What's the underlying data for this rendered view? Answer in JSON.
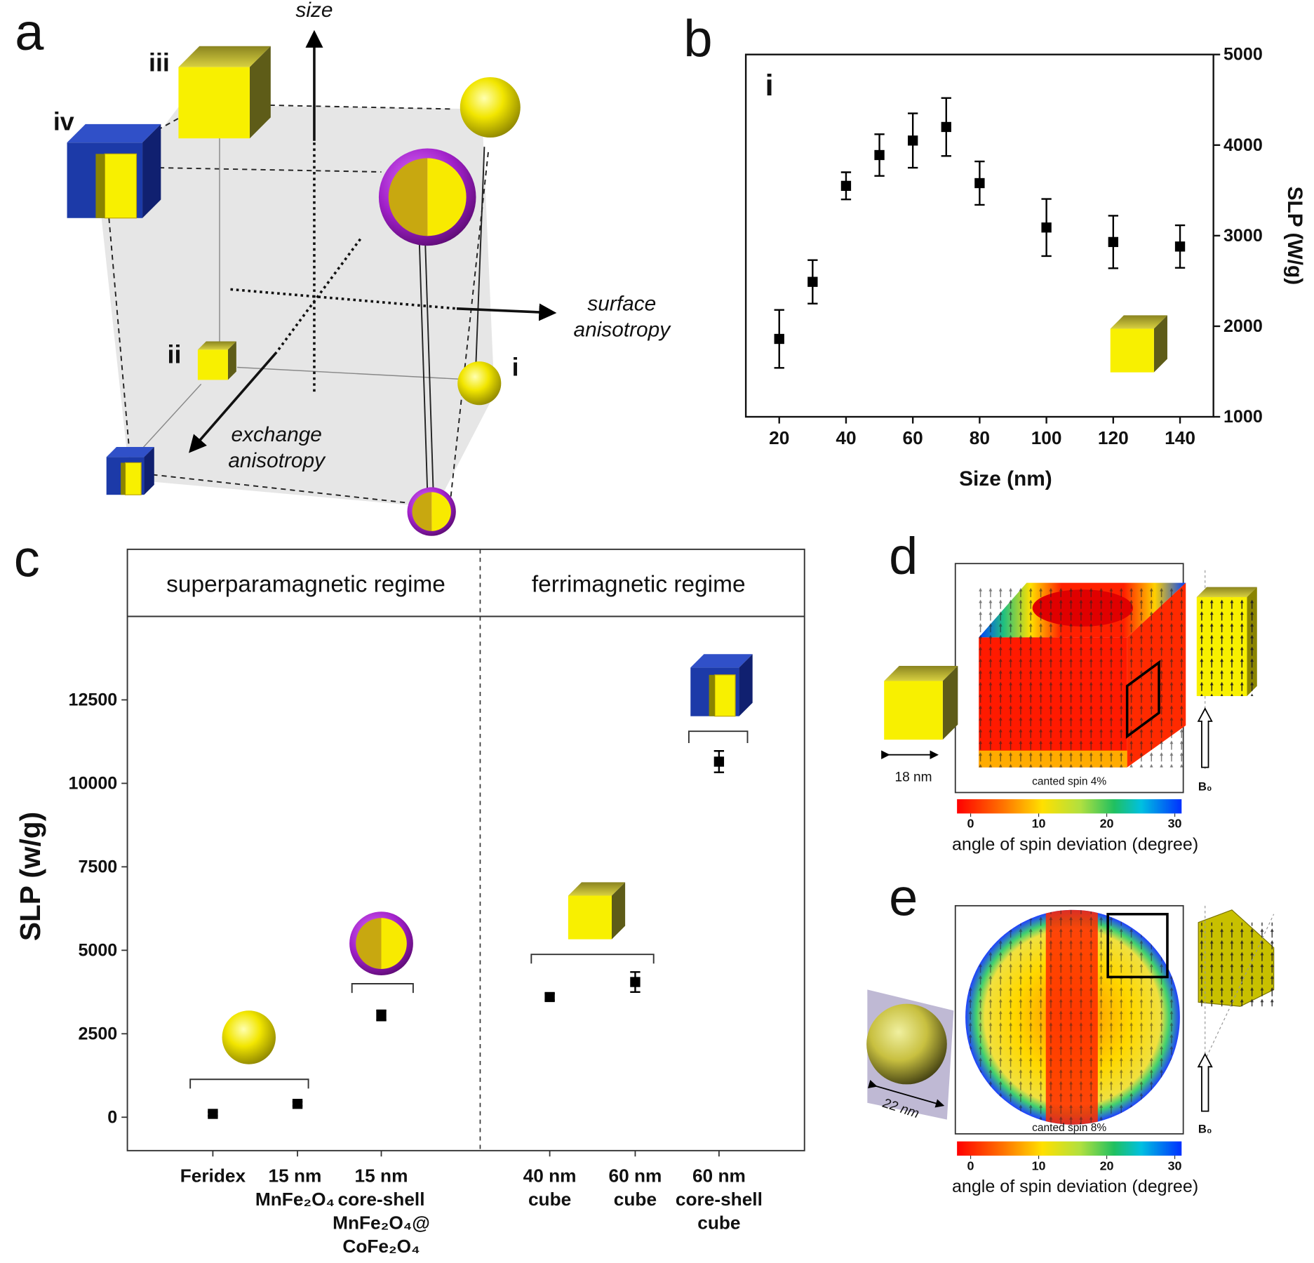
{
  "panel_labels": [
    "a",
    "b",
    "c",
    "d",
    "e"
  ],
  "diagram_a": {
    "size_axis": "size",
    "surface_axis": "surface\nanisotropy",
    "exchange_axis": "exchange\nanisotropy",
    "markers": [
      "i",
      "ii",
      "iii",
      "iv"
    ]
  },
  "chart_data": [
    {
      "type": "scatter",
      "inset_label": "i",
      "xlabel": "Size (nm)",
      "ylabel": "SLP (W/g)",
      "x": [
        20,
        30,
        40,
        50,
        60,
        70,
        80,
        100,
        120,
        140
      ],
      "values": [
        1860,
        2490,
        3550,
        3890,
        4050,
        4200,
        3580,
        3090,
        2930,
        2880
      ],
      "errors": [
        320,
        240,
        150,
        230,
        300,
        320,
        240,
        315,
        290,
        235
      ],
      "xlim": [
        10,
        150
      ],
      "ylim": [
        1000,
        5000
      ],
      "xticks": [
        20,
        40,
        60,
        80,
        100,
        120,
        140
      ],
      "yticks": [
        1000,
        2000,
        3000,
        4000,
        5000
      ],
      "y_axis_side": "right",
      "color": "#000000"
    },
    {
      "type": "dot",
      "ylabel": "SLP (w/g)",
      "regimes": [
        "superparamagnetic regime",
        "ferrimagnetic regime"
      ],
      "categories": [
        "Feridex",
        "15 nm\nMnFe₂O₄",
        "15 nm\ncore-shell\nMnFe₂O₄@\nCoFe₂O₄",
        "40 nm\ncube",
        "60 nm\ncube",
        "60 nm\ncore-shell\ncube"
      ],
      "values": [
        100,
        400,
        3050,
        3600,
        4050,
        10650
      ],
      "errors": [
        60,
        60,
        150,
        100,
        300,
        320
      ],
      "ylim": [
        -1000,
        15000
      ],
      "yticks": [
        0,
        2500,
        5000,
        7500,
        10000,
        12500
      ],
      "color": "#000000"
    }
  ],
  "panel_d": {
    "size_label": "18 nm",
    "canted_label": "canted spin 4%",
    "field_label": "B₀",
    "colorbar": {
      "lim": [
        -2,
        31
      ],
      "ticks": [
        0,
        10,
        20,
        30
      ],
      "label": "angle of spin  deviation (degree)"
    }
  },
  "panel_e": {
    "size_label": "22 nm",
    "canted_label": "canted spin 8%",
    "field_label": "B₀",
    "colorbar": {
      "lim": [
        -2,
        31
      ],
      "ticks": [
        0,
        10,
        20,
        30
      ],
      "label": "angle of spin  deviation (degree)"
    }
  }
}
